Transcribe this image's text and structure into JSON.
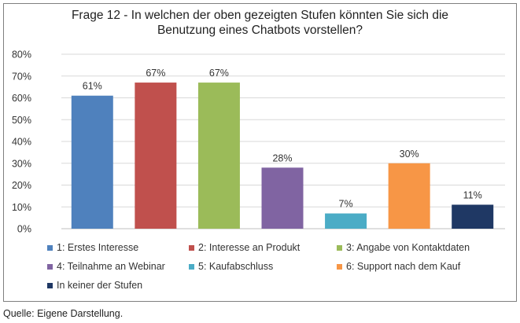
{
  "chart_data": {
    "type": "bar",
    "title_line1": "Frage 12 - In welchen der oben gezeigten Stufen könnten Sie sich die",
    "title_line2": "Benutzung eines Chatbots vorstellen?",
    "categories": [
      "1: Erstes Interesse",
      "2: Interesse an Produkt",
      "3: Angabe von Kontaktdaten",
      "4: Teilnahme an Webinar",
      "5: Kaufabschluss",
      "6: Support nach dem Kauf",
      "In keiner der Stufen"
    ],
    "values": [
      61,
      67,
      67,
      28,
      7,
      30,
      11
    ],
    "value_labels": [
      "61%",
      "67%",
      "67%",
      "28%",
      "7%",
      "30%",
      "11%"
    ],
    "colors": [
      "#4f81bd",
      "#c0504d",
      "#9bbb59",
      "#8064a2",
      "#4bacc6",
      "#f79646",
      "#1f3864"
    ],
    "ylim": [
      0,
      80
    ],
    "yticks": [
      0,
      10,
      20,
      30,
      40,
      50,
      60,
      70,
      80
    ],
    "ytick_labels": [
      "0%",
      "10%",
      "20%",
      "30%",
      "40%",
      "50%",
      "60%",
      "70%",
      "80%"
    ],
    "grid": true,
    "legend": "bottom",
    "xlabel": "",
    "ylabel": ""
  },
  "source_note": "Quelle: Eigene Darstellung."
}
